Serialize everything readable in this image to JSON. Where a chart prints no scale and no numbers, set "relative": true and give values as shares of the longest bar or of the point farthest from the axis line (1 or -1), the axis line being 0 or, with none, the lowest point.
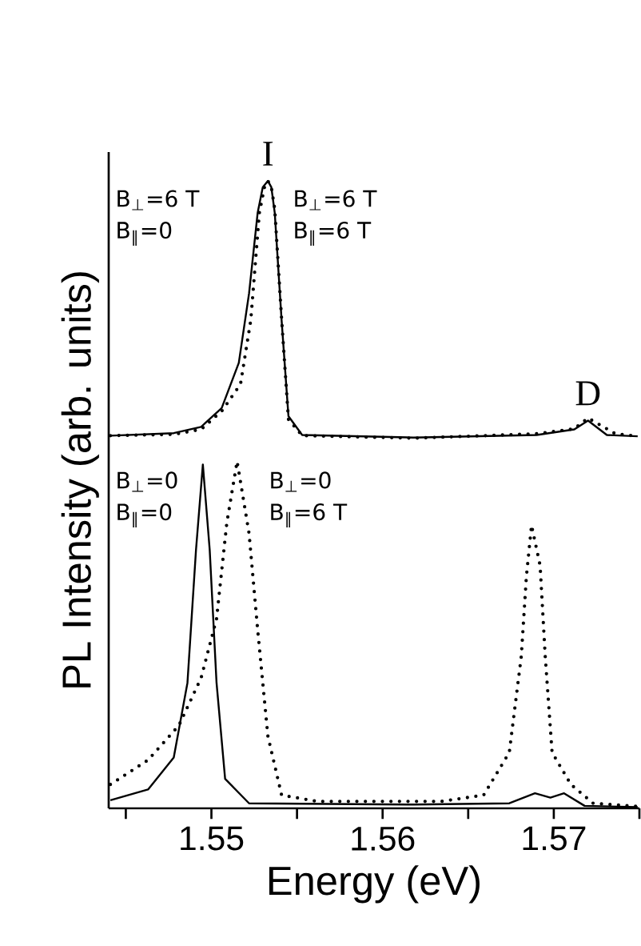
{
  "chart_data": {
    "type": "line",
    "relative": true,
    "xlabel": "Energy (eV)",
    "ylabel": "PL Intensity (arb. units)",
    "xlim": [
      1.544,
      1.575
    ],
    "xticks": [
      {
        "value": 1.545,
        "label": null
      },
      1.55,
      {
        "value": 1.555,
        "label": null
      },
      1.56,
      {
        "value": 1.565,
        "label": null
      },
      1.57,
      {
        "value": 1.575,
        "label": null
      }
    ],
    "annotations": [
      {
        "text": "I",
        "x": 1.5533,
        "y": 1.0
      },
      {
        "text": "D",
        "x": 1.572,
        "y": 0.618
      },
      "B$_{⊥}$=6 T",
      "B$_{∥}$=0",
      "B$_{⊥}$=6 T",
      "B$_{∥}$=6 T",
      "B$_{⊥}$=0",
      "B$_{∥}$=0",
      "B$_{⊥}$=0",
      "B$_{∥}$=6 T"
    ],
    "series": [
      {
        "color": "#000000",
        "line_style": "solid",
        "x": [
          1.5441,
          1.5478,
          1.5494,
          1.5506,
          1.5516,
          1.5522,
          1.5527,
          1.553,
          1.5533,
          1.5535,
          1.5537,
          1.5541,
          1.5545,
          1.5553,
          1.5618,
          1.569,
          1.5712,
          1.572,
          1.5731,
          1.5749
        ],
        "values": [
          0.594,
          0.598,
          0.608,
          0.638,
          0.71,
          0.821,
          0.949,
          0.99,
          1.0,
          0.99,
          0.949,
          0.778,
          0.625,
          0.595,
          0.591,
          0.595,
          0.604,
          0.618,
          0.595,
          0.593
        ]
      },
      {
        "color": "#000000",
        "line_style": "dotted",
        "x": [
          1.5441,
          1.5478,
          1.5494,
          1.5506,
          1.5517,
          1.5523,
          1.5528,
          1.5531,
          1.5533,
          1.5535,
          1.5537,
          1.5541,
          1.5545,
          1.5553,
          1.5618,
          1.569,
          1.5712,
          1.572,
          1.5729,
          1.5736,
          1.5749
        ],
        "values": [
          0.594,
          0.596,
          0.604,
          0.633,
          0.676,
          0.778,
          0.949,
          0.99,
          1.0,
          0.99,
          0.955,
          0.78,
          0.62,
          0.594,
          0.59,
          0.597,
          0.605,
          0.622,
          0.608,
          0.597,
          0.593
        ]
      },
      {
        "color": "#000000",
        "line_style": "solid",
        "x": [
          1.5441,
          1.5463,
          1.5478,
          1.5486,
          1.5491,
          1.5495,
          1.5499,
          1.5503,
          1.5508,
          1.5522,
          1.5618,
          1.5674,
          1.5689,
          1.5698,
          1.5706,
          1.5718,
          1.5749
        ],
        "values": [
          0.013,
          0.03,
          0.081,
          0.2,
          0.412,
          0.548,
          0.412,
          0.2,
          0.047,
          0.008,
          0.006,
          0.008,
          0.024,
          0.017,
          0.024,
          0.004,
          0.002
        ]
      },
      {
        "color": "#000000",
        "line_style": "dotted",
        "x": [
          1.5441,
          1.5463,
          1.5481,
          1.5494,
          1.5503,
          1.5509,
          1.5515,
          1.5522,
          1.5527,
          1.5533,
          1.5541,
          1.5562,
          1.5634,
          1.5659,
          1.5674,
          1.5681,
          1.5684,
          1.5687,
          1.5692,
          1.5695,
          1.5699,
          1.571,
          1.5723,
          1.5749
        ],
        "values": [
          0.038,
          0.077,
          0.132,
          0.208,
          0.302,
          0.455,
          0.553,
          0.438,
          0.285,
          0.115,
          0.021,
          0.011,
          0.011,
          0.021,
          0.089,
          0.242,
          0.37,
          0.451,
          0.387,
          0.242,
          0.089,
          0.038,
          0.008,
          0.003
        ]
      }
    ]
  }
}
